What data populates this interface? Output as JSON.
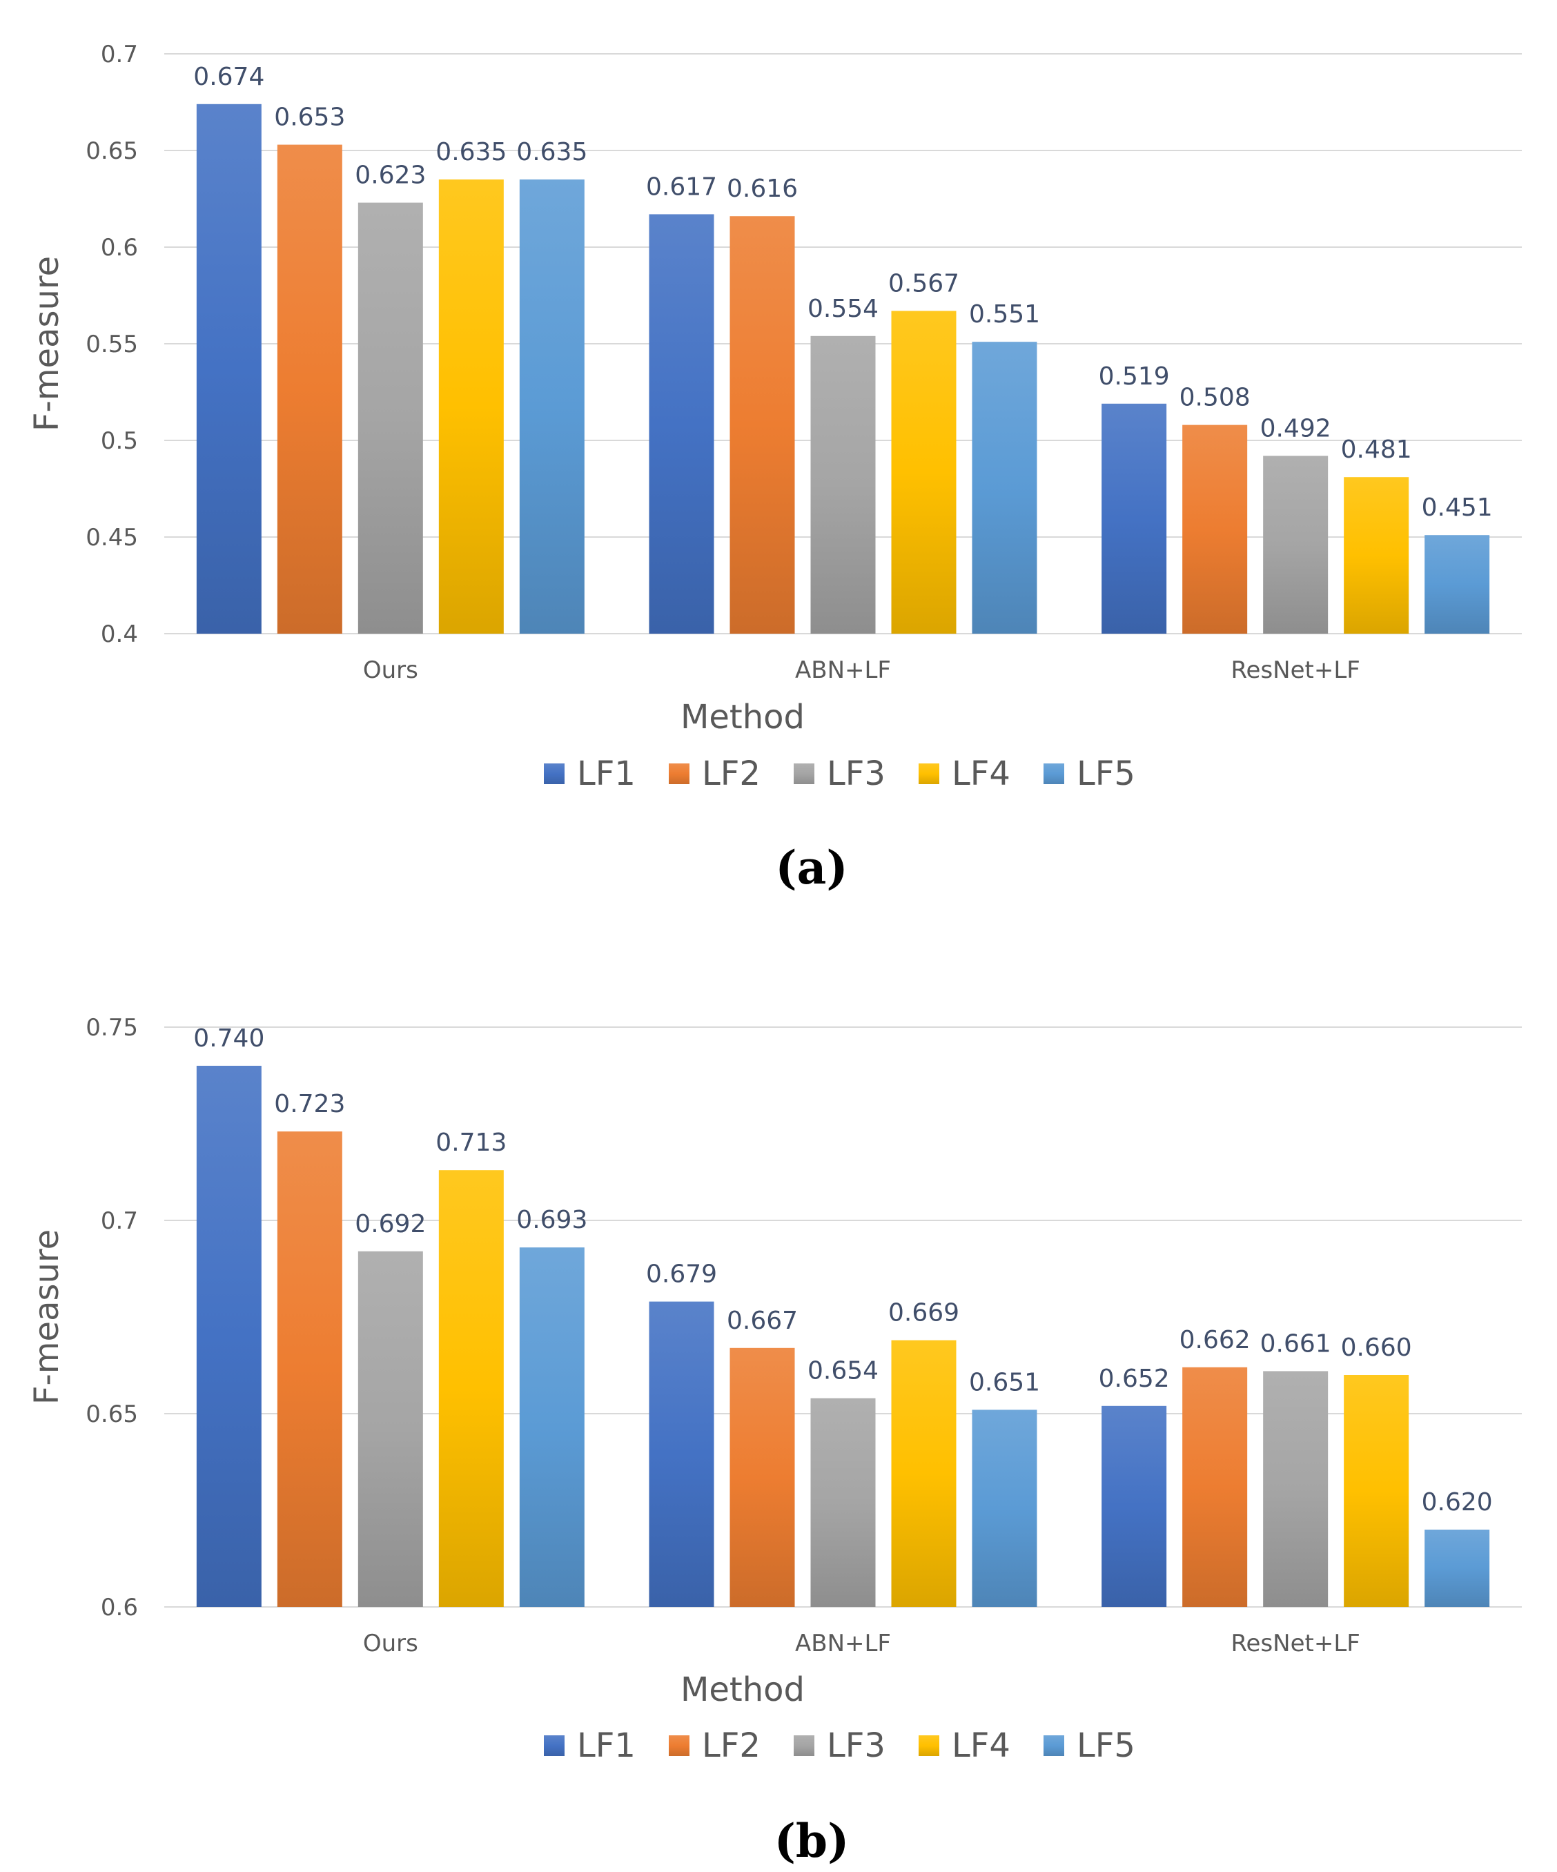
{
  "legend": [
    {
      "name": "LF1",
      "color": "#4472c4"
    },
    {
      "name": "LF2",
      "color": "#ed7d31"
    },
    {
      "name": "LF3",
      "color": "#a5a5a5"
    },
    {
      "name": "LF4",
      "color": "#ffc000"
    },
    {
      "name": "LF5",
      "color": "#5b9bd5"
    }
  ],
  "chart_data": [
    {
      "type": "bar",
      "panel_label": "(a)",
      "xlabel": "Method",
      "ylabel": "F-measure",
      "categories": [
        "Ours",
        "ABN+LF",
        "ResNet+LF"
      ],
      "ylim": [
        0.4,
        0.7
      ],
      "yticks": [
        "0.4",
        "0.45",
        "0.5",
        "0.55",
        "0.6",
        "0.65",
        "0.7"
      ],
      "grid": true,
      "legend_position": "bottom",
      "series": [
        {
          "name": "LF1",
          "values": [
            0.674,
            0.617,
            0.519
          ],
          "labels": [
            "0.674",
            "0.617",
            "0.519"
          ]
        },
        {
          "name": "LF2",
          "values": [
            0.653,
            0.616,
            0.508
          ],
          "labels": [
            "0.653",
            "0.616",
            "0.508"
          ]
        },
        {
          "name": "LF3",
          "values": [
            0.623,
            0.554,
            0.492
          ],
          "labels": [
            "0.623",
            "0.554",
            "0.492"
          ]
        },
        {
          "name": "LF4",
          "values": [
            0.635,
            0.567,
            0.481
          ],
          "labels": [
            "0.635",
            "0.567",
            "0.481"
          ]
        },
        {
          "name": "LF5",
          "values": [
            0.635,
            0.551,
            0.451
          ],
          "labels": [
            "0.635",
            "0.551",
            "0.451"
          ]
        }
      ]
    },
    {
      "type": "bar",
      "panel_label": "(b)",
      "xlabel": "Method",
      "ylabel": "F-measure",
      "categories": [
        "Ours",
        "ABN+LF",
        "ResNet+LF"
      ],
      "ylim": [
        0.6,
        0.75
      ],
      "yticks": [
        "0.6",
        "0.65",
        "0.7",
        "0.75"
      ],
      "grid": true,
      "legend_position": "bottom",
      "series": [
        {
          "name": "LF1",
          "values": [
            0.74,
            0.679,
            0.652
          ],
          "labels": [
            "0.740",
            "0.679",
            "0.652"
          ]
        },
        {
          "name": "LF2",
          "values": [
            0.723,
            0.667,
            0.662
          ],
          "labels": [
            "0.723",
            "0.667",
            "0.662"
          ]
        },
        {
          "name": "LF3",
          "values": [
            0.692,
            0.654,
            0.661
          ],
          "labels": [
            "0.692",
            "0.654",
            "0.661"
          ]
        },
        {
          "name": "LF4",
          "values": [
            0.713,
            0.669,
            0.66
          ],
          "labels": [
            "0.713",
            "0.669",
            "0.660"
          ]
        },
        {
          "name": "LF5",
          "values": [
            0.693,
            0.651,
            0.62
          ],
          "labels": [
            "0.693",
            "0.651",
            "0.620"
          ]
        }
      ]
    }
  ]
}
